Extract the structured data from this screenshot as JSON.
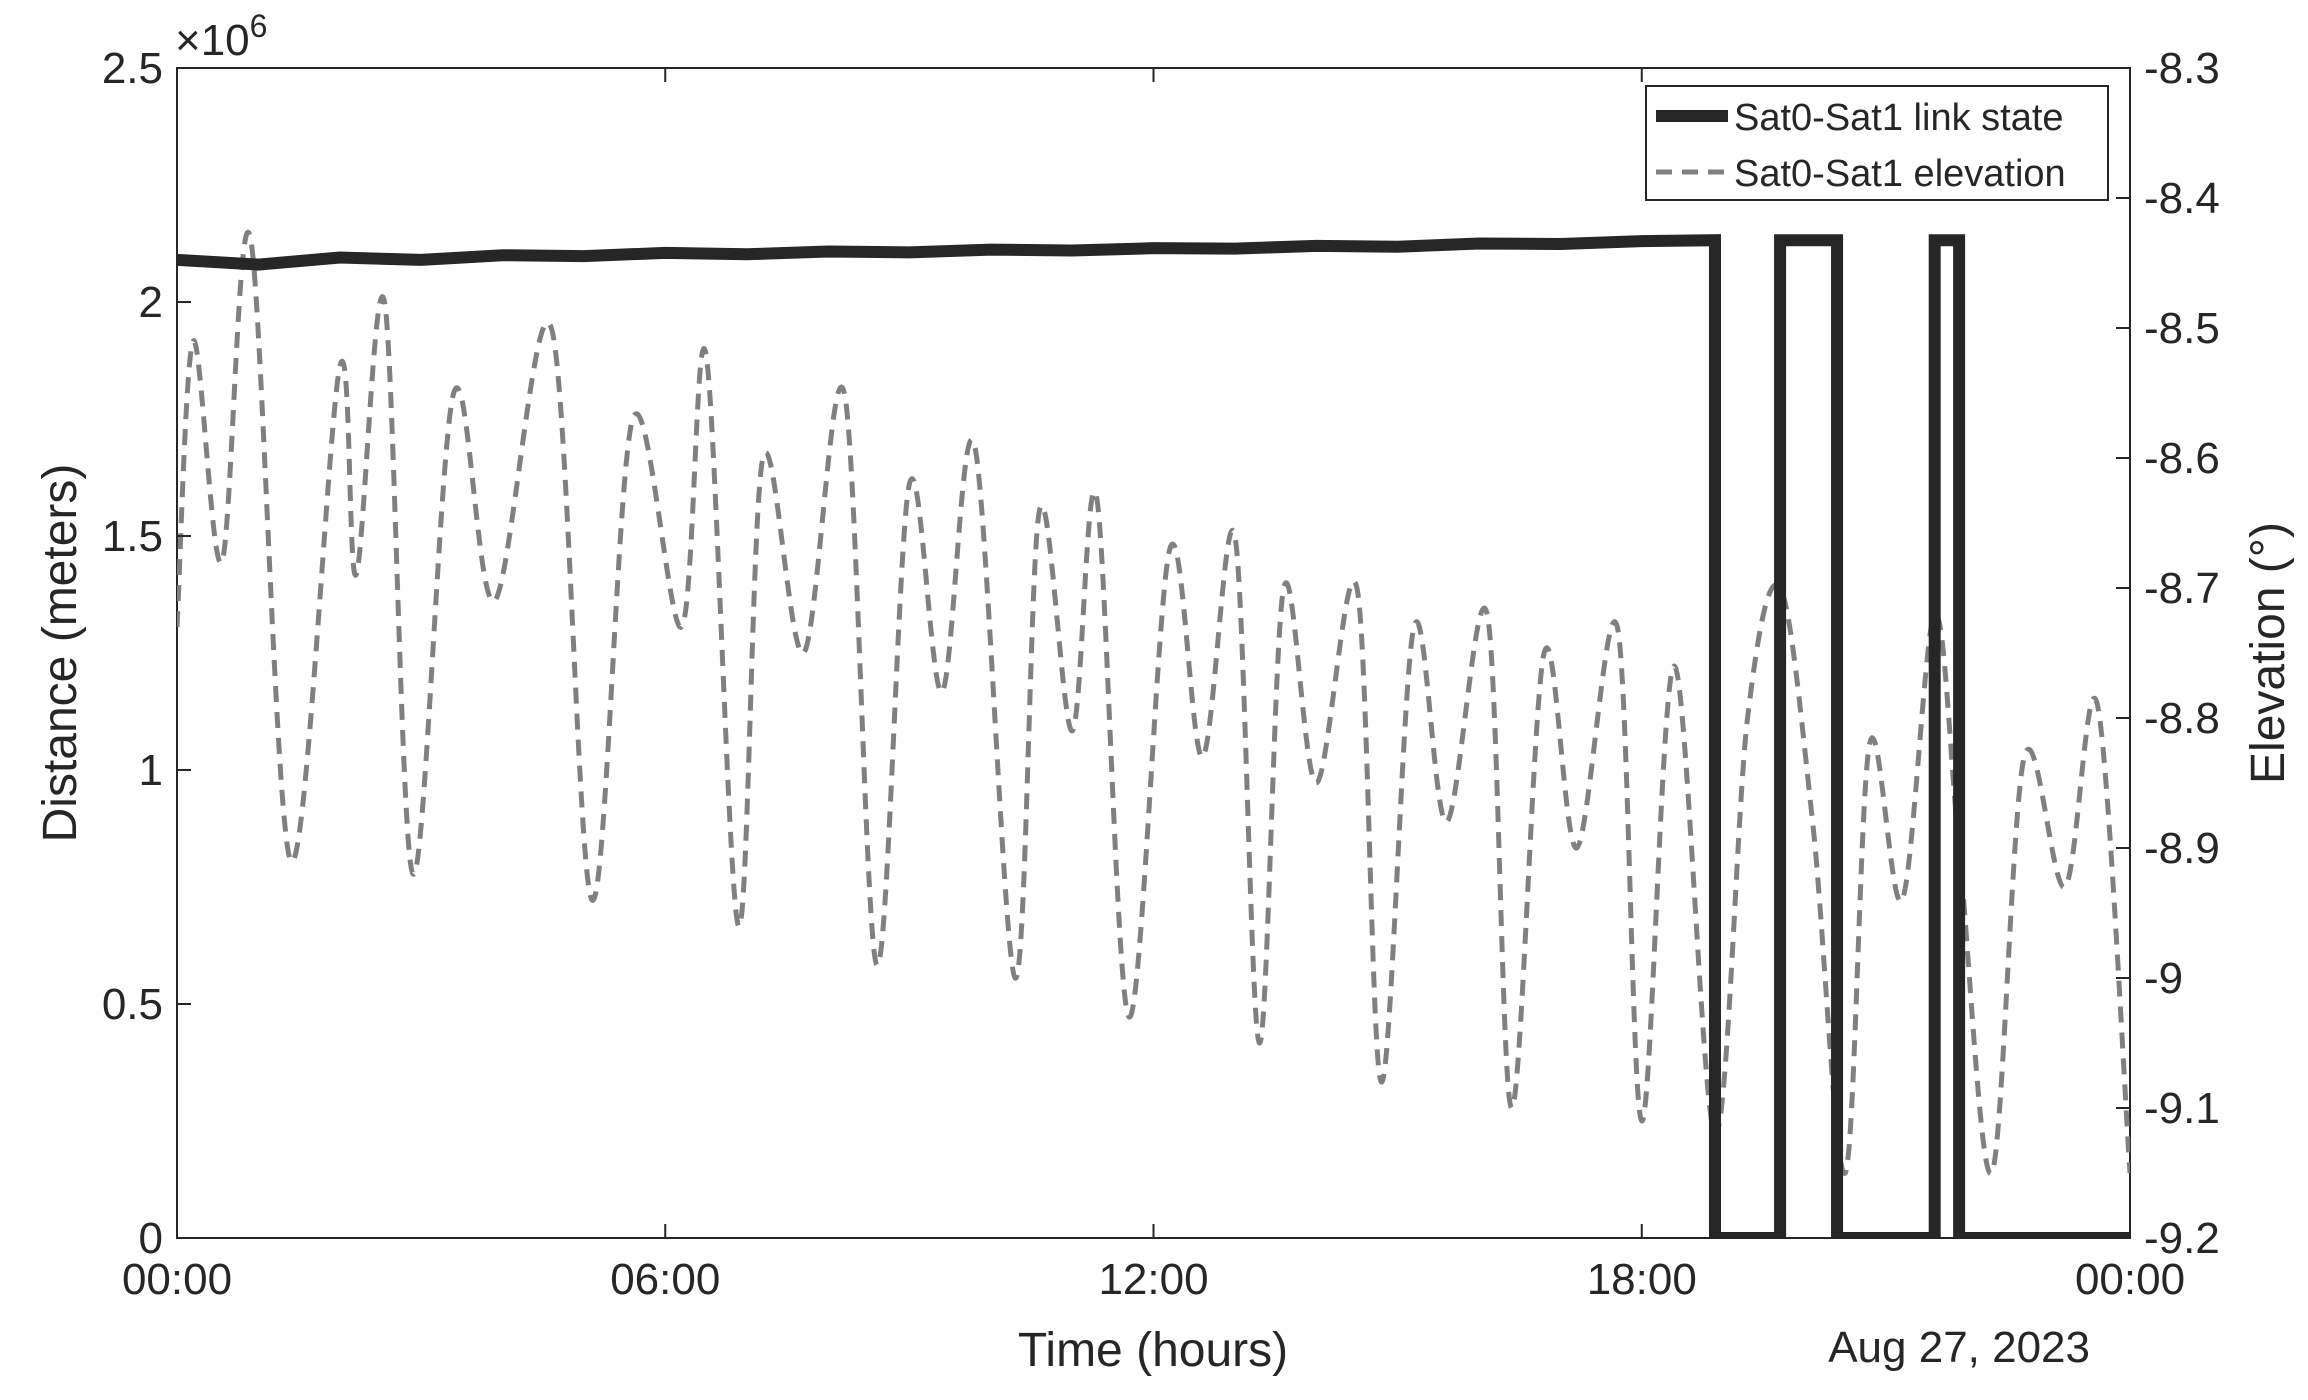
{
  "chart_data": {
    "type": "line",
    "xlabel": "Time (hours)",
    "x_date_label": "Aug 27, 2023",
    "x_range": [
      "00:00",
      "24:00"
    ],
    "x_ticks": [
      {
        "hour": 0,
        "label": "00:00"
      },
      {
        "hour": 6,
        "label": "06:00"
      },
      {
        "hour": 12,
        "label": "12:00"
      },
      {
        "hour": 18,
        "label": "18:00"
      },
      {
        "hour": 24,
        "label": "00:00"
      }
    ],
    "y_left": {
      "label": "Distance (meters)",
      "exponent_label": "×10",
      "exponent_power": "6",
      "lim": [
        0,
        2500000
      ],
      "ticks": [
        {
          "value": 0,
          "label": "0"
        },
        {
          "value": 500000,
          "label": "0.5"
        },
        {
          "value": 1000000,
          "label": "1"
        },
        {
          "value": 1500000,
          "label": "1.5"
        },
        {
          "value": 2000000,
          "label": "2"
        },
        {
          "value": 2500000,
          "label": "2.5"
        }
      ]
    },
    "y_right": {
      "label": "Elevation (°)",
      "lim": [
        -9.2,
        -8.3
      ],
      "ticks": [
        {
          "value": -8.3,
          "label": "-8.3"
        },
        {
          "value": -8.4,
          "label": "-8.4"
        },
        {
          "value": -8.5,
          "label": "-8.5"
        },
        {
          "value": -8.6,
          "label": "-8.6"
        },
        {
          "value": -8.7,
          "label": "-8.7"
        },
        {
          "value": -8.8,
          "label": "-8.8"
        },
        {
          "value": -8.9,
          "label": "-8.9"
        },
        {
          "value": -9.0,
          "label": "-9"
        },
        {
          "value": -9.1,
          "label": "-9.1"
        },
        {
          "value": -9.2,
          "label": "-9.2"
        }
      ]
    },
    "grid": false,
    "legend_position": "top-right",
    "series": [
      {
        "name": "Sat0-Sat1 link state",
        "axis": "left",
        "style": "solid-thick",
        "color": "#262626",
        "x_hours": [
          0,
          1,
          2,
          3,
          4,
          5,
          6,
          7,
          8,
          9,
          10,
          11,
          12,
          13,
          14,
          15,
          16,
          17,
          18,
          18.9,
          18.9,
          19.7,
          19.7,
          20.4,
          20.4,
          21.6,
          21.6,
          21.9,
          21.9,
          24
        ],
        "values": [
          2090000,
          2080000,
          2095000,
          2090000,
          2100000,
          2098000,
          2105000,
          2102000,
          2108000,
          2106000,
          2112000,
          2110000,
          2115000,
          2114000,
          2120000,
          2118000,
          2125000,
          2124000,
          2130000,
          2132000,
          0,
          0,
          2132000,
          2132000,
          0,
          0,
          2132000,
          2132000,
          0,
          0
        ]
      },
      {
        "name": "Sat0-Sat1 elevation",
        "axis": "right",
        "style": "dashed",
        "color": "#808080",
        "x_hours": [
          0,
          0.2,
          0.55,
          0.9,
          1.4,
          2.0,
          2.2,
          2.55,
          2.9,
          3.4,
          3.9,
          4.6,
          5.1,
          5.6,
          6.2,
          6.5,
          6.9,
          7.2,
          7.7,
          8.2,
          8.6,
          9.0,
          9.4,
          9.8,
          10.3,
          10.6,
          11.0,
          11.3,
          11.7,
          12.2,
          12.6,
          13.0,
          13.3,
          13.6,
          14.0,
          14.5,
          14.8,
          15.2,
          15.6,
          16.1,
          16.4,
          16.8,
          17.2,
          17.7,
          18.0,
          18.4,
          18.9,
          19.3,
          19.7,
          20.1,
          20.5,
          20.8,
          21.2,
          21.6,
          21.9,
          22.3,
          22.7,
          23.2,
          23.6,
          24.0
        ],
        "values": [
          -8.73,
          -8.51,
          -8.68,
          -8.43,
          -8.91,
          -8.53,
          -8.69,
          -8.48,
          -8.92,
          -8.55,
          -8.71,
          -8.5,
          -8.94,
          -8.57,
          -8.73,
          -8.52,
          -8.96,
          -8.6,
          -8.75,
          -8.55,
          -8.99,
          -8.62,
          -8.78,
          -8.59,
          -9.0,
          -8.64,
          -8.81,
          -8.63,
          -9.03,
          -8.67,
          -8.83,
          -8.66,
          -9.05,
          -8.7,
          -8.85,
          -8.7,
          -9.08,
          -8.73,
          -8.88,
          -8.72,
          -9.1,
          -8.75,
          -8.9,
          -8.73,
          -9.11,
          -8.76,
          -9.12,
          -8.8,
          -8.7,
          -8.88,
          -9.15,
          -8.82,
          -8.94,
          -8.72,
          -8.9,
          -9.15,
          -8.83,
          -8.93,
          -8.79,
          -9.15
        ]
      }
    ]
  }
}
